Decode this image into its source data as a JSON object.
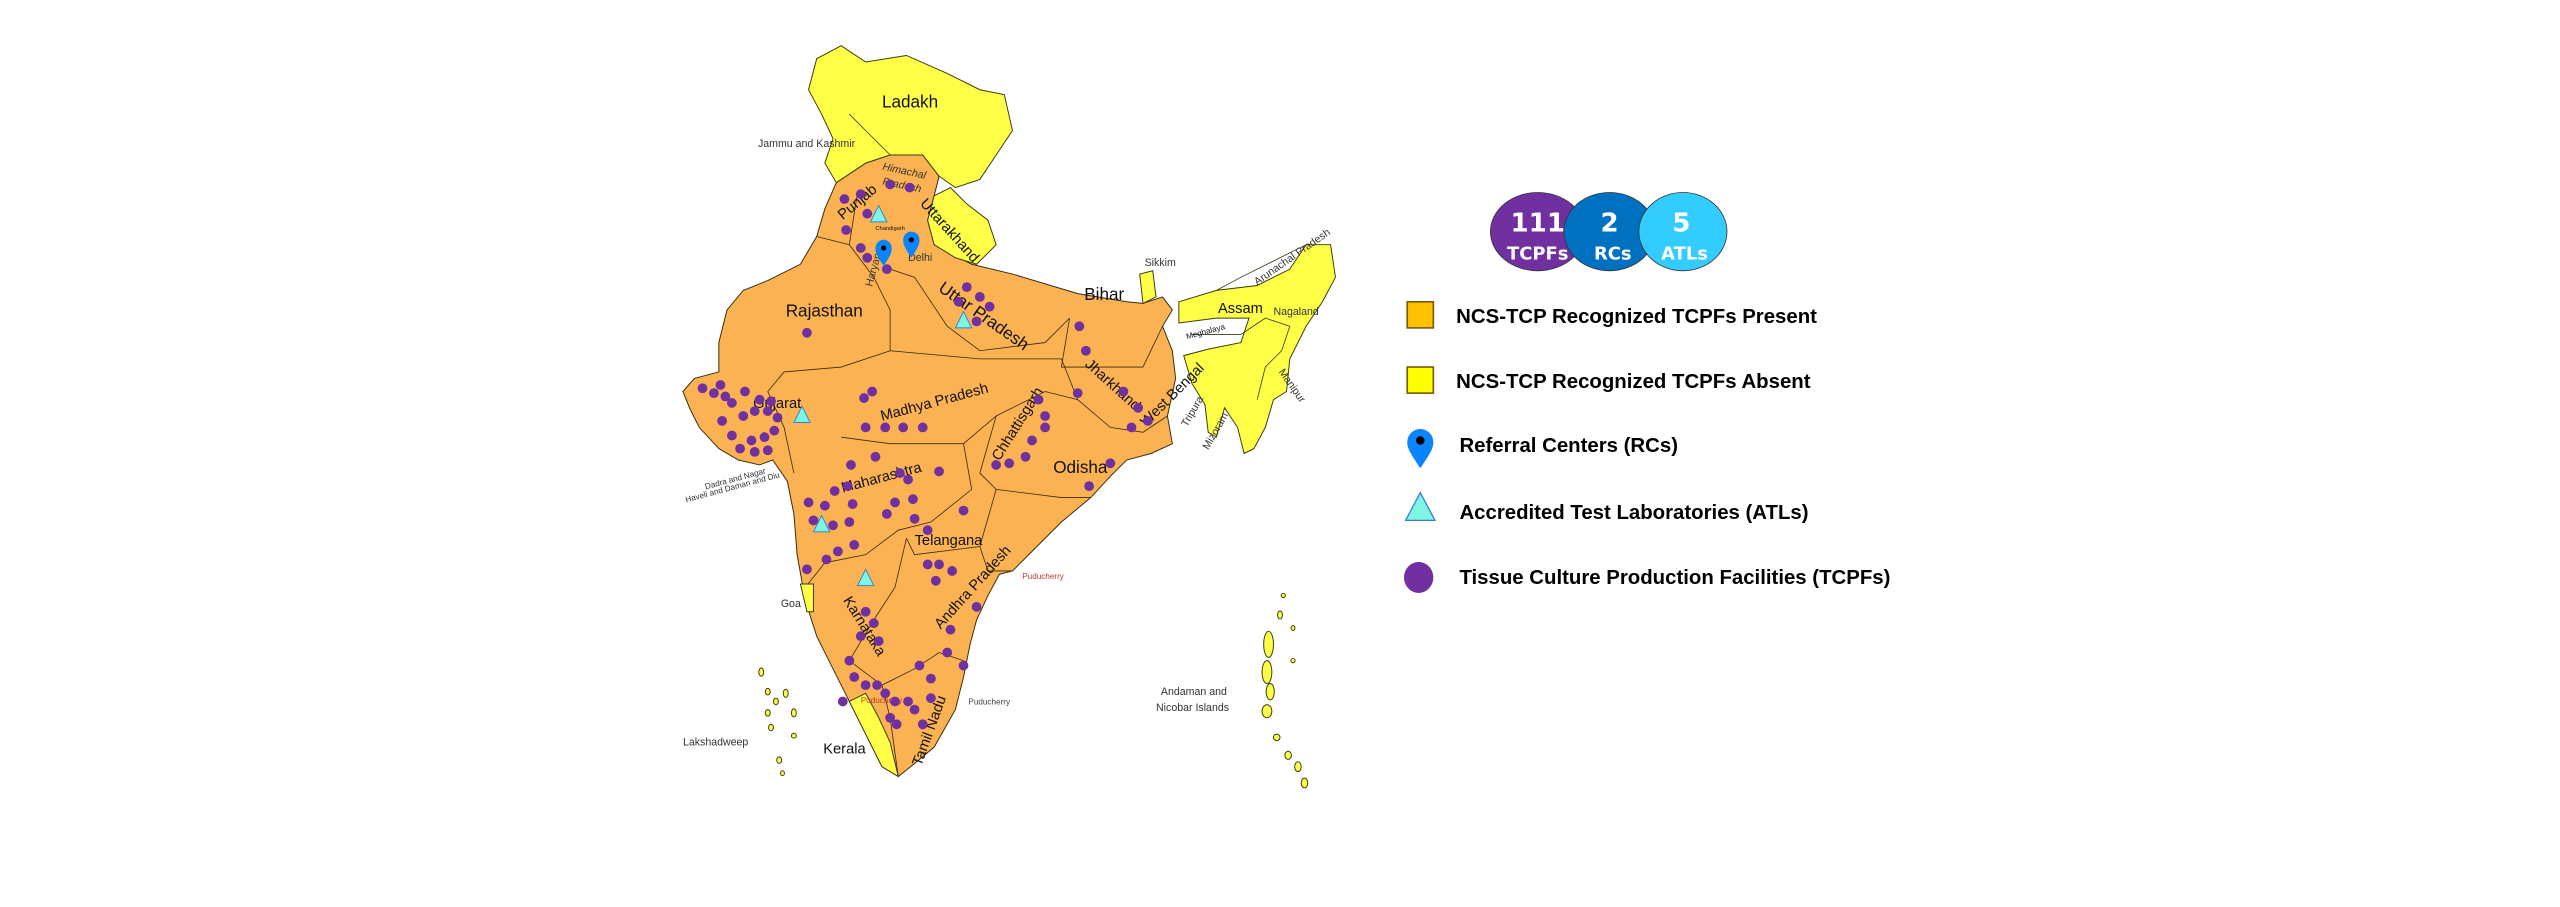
{
  "colors": {
    "present": "#fbb252",
    "absent": "#ffff47",
    "tcpf": "#7030a0",
    "rc": "#0a84ff",
    "atl": "#7ff5e3",
    "bubble_tcpf": "#7030a0",
    "bubble_rc": "#0070c0",
    "bubble_atl": "#33ccff"
  },
  "summary": [
    {
      "count": "111",
      "label": "TCPFs"
    },
    {
      "count": "2",
      "label": "RCs"
    },
    {
      "count": "5",
      "label": "ATLs"
    }
  ],
  "legend": [
    {
      "icon": "orange-square-icon",
      "label": "NCS-TCP Recognized TCPFs Present"
    },
    {
      "icon": "yellow-square-icon",
      "label": "NCS-TCP Recognized TCPFs Absent"
    },
    {
      "icon": "map-pin-icon",
      "label": "Referral Centers (RCs)"
    },
    {
      "icon": "triangle-icon",
      "label": "Accredited Test Laboratories (ATLs)"
    },
    {
      "icon": "circle-icon",
      "label": "Tissue Culture Production Facilities (TCPFs)"
    }
  ],
  "map": {
    "labels": {
      "ladakh": "Ladakh",
      "jk": "Jammu and Kashmir",
      "himachal_1": "Himachal",
      "himachal_2": "Pradesh",
      "punjab": "Punjab",
      "chandigarh": "Chandigarh",
      "haryana": "Haryana",
      "uttarakhand": "Uttarakhand",
      "delhi": "Delhi",
      "rajasthan": "Rajasthan",
      "up": "Uttar Pradesh",
      "bihar": "Bihar",
      "sikkim": "Sikkim",
      "arunachal": "Arunachal Pradesh",
      "assam": "Assam",
      "nagaland": "Nagaland",
      "meghalaya": "Meghalaya",
      "manipur": "Manipur",
      "tripura": "Tripura",
      "mizoram": "Mizoram",
      "west_bengal": "West Bengal",
      "jharkhand": "Jharkhand",
      "gujarat": "Gujarat",
      "mp": "Madhya Pradesh",
      "chhattisgarh": "Chhattisgarh",
      "odisha": "Odisha",
      "maharashtra": "Maharashtra",
      "dnh_1": "Dadra and Nagar",
      "dnh_2": "Haveli and Daman and Diu",
      "telangana": "Telangana",
      "ap": "Andhra Pradesh",
      "karnataka": "Karnataka",
      "goa": "Goa",
      "puducherry_1": "Puducherry",
      "puducherry_2": "Puducherry",
      "puducherry_3": "Puducherry",
      "kerala": "Kerala",
      "tamil_nadu": "Tamil Nadu",
      "lakshadweep": "Lakshadweep",
      "andaman_1": "Andaman and",
      "andaman_2": "Nicobar Islands"
    }
  }
}
